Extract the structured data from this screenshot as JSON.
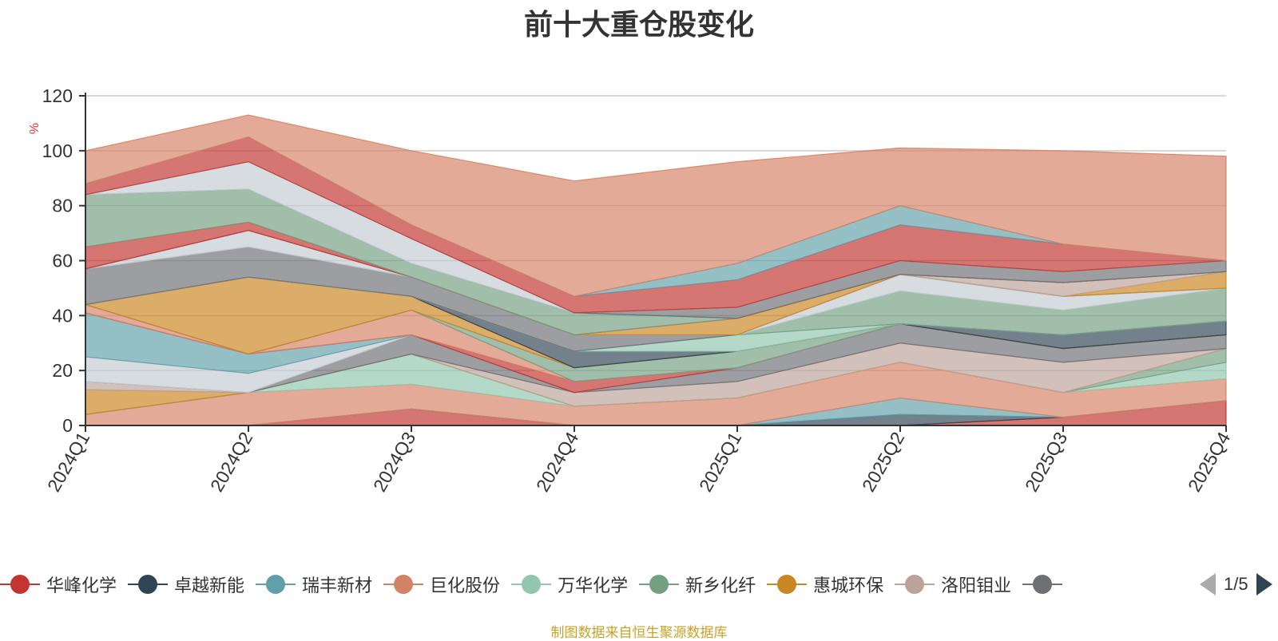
{
  "title": "前十大重仓股变化",
  "footer": "制图数据来自恒生聚源数据库",
  "pager": "1/5",
  "chart_data": {
    "type": "area",
    "stacked": true,
    "x": [
      "2024Q1",
      "2024Q2",
      "2024Q3",
      "2024Q4",
      "2025Q1",
      "2025Q2",
      "2025Q3",
      "2025Q4"
    ],
    "ylabel": "%",
    "ylim": [
      0,
      120
    ],
    "yticks": [
      0,
      20,
      40,
      60,
      80,
      100,
      120
    ],
    "grid": true,
    "legend_position": "bottom",
    "series": [
      {
        "name": "华峰化学",
        "color": "#c23531",
        "values": [
          0,
          0,
          6,
          0,
          0,
          0,
          3,
          9
        ]
      },
      {
        "name": "卓越新能",
        "color": "#2f4554",
        "values": [
          0,
          0,
          0,
          0,
          0,
          4,
          0,
          0
        ]
      },
      {
        "name": "瑞丰新材",
        "color": "#61a0a8",
        "values": [
          0,
          0,
          0,
          0,
          0,
          6,
          0,
          0
        ]
      },
      {
        "name": "巨化股份",
        "color": "#d48265",
        "values": [
          4,
          12,
          9,
          7,
          10,
          13,
          9,
          8
        ]
      },
      {
        "name": "万华化学",
        "color": "#91c7ae",
        "values": [
          0,
          0,
          11,
          0,
          0,
          0,
          0,
          6
        ]
      },
      {
        "name": "新乡化纤",
        "color": "#749f83",
        "values": [
          0,
          0,
          0,
          0,
          0,
          0,
          0,
          5
        ]
      },
      {
        "name": "惠城环保",
        "color": "#ca8622",
        "values": [
          9,
          0,
          0,
          0,
          0,
          0,
          0,
          0
        ]
      },
      {
        "name": "洛阳钼业",
        "color": "#bda29a",
        "values": [
          3,
          0,
          0,
          5,
          6,
          7,
          11,
          0
        ]
      },
      {
        "name": "",
        "color": "#6e7074",
        "values": [
          0,
          0,
          7,
          0,
          5,
          7,
          5,
          5
        ]
      },
      {
        "name": "",
        "color": "#c4ccd3",
        "values": [
          9,
          7,
          0,
          0,
          0,
          0,
          0,
          0
        ]
      },
      {
        "name": "",
        "color": "#61a0a8",
        "values": [
          16,
          7,
          0,
          0,
          0,
          0,
          0,
          0
        ]
      },
      {
        "name": "",
        "color": "#c23531",
        "values": [
          0,
          0,
          0,
          4,
          0,
          0,
          0,
          0
        ]
      },
      {
        "name": "",
        "color": "#d48265",
        "values": [
          3,
          0,
          9,
          0,
          0,
          0,
          0,
          0
        ]
      },
      {
        "name": "",
        "color": "#749f83",
        "values": [
          0,
          0,
          0,
          5,
          6,
          0,
          0,
          0
        ]
      },
      {
        "name": "",
        "color": "#ca8622",
        "values": [
          0,
          28,
          5,
          0,
          0,
          0,
          0,
          0
        ]
      },
      {
        "name": "",
        "color": "#2f4554",
        "values": [
          0,
          0,
          0,
          6,
          0,
          0,
          5,
          5
        ]
      },
      {
        "name": "",
        "color": "#91c7ae",
        "values": [
          0,
          0,
          0,
          0,
          6,
          0,
          0,
          0
        ]
      },
      {
        "name": "",
        "color": "#749f83",
        "values": [
          0,
          0,
          0,
          0,
          0,
          12,
          9,
          12
        ]
      },
      {
        "name": "",
        "color": "#c4ccd3",
        "values": [
          0,
          0,
          0,
          0,
          0,
          6,
          5,
          0
        ]
      },
      {
        "name": "",
        "color": "#6e7074",
        "values": [
          13,
          11,
          7,
          6,
          0,
          0,
          0,
          0
        ]
      },
      {
        "name": "",
        "color": "#c4ccd3",
        "values": [
          0,
          6,
          0,
          0,
          0,
          0,
          0,
          0
        ]
      },
      {
        "name": "",
        "color": "#ca8622",
        "values": [
          0,
          0,
          0,
          0,
          6,
          0,
          0,
          6
        ]
      },
      {
        "name": "",
        "color": "#bda29a",
        "values": [
          0,
          0,
          0,
          0,
          0,
          0,
          5,
          0
        ]
      },
      {
        "name": "",
        "color": "#c23531",
        "values": [
          8,
          3,
          0,
          0,
          0,
          0,
          0,
          0
        ]
      },
      {
        "name": "",
        "color": "#749f83",
        "values": [
          19,
          12,
          5,
          8,
          0,
          0,
          0,
          0
        ]
      },
      {
        "name": "",
        "color": "#6e7074",
        "values": [
          0,
          0,
          0,
          0,
          4,
          5,
          4,
          4
        ]
      },
      {
        "name": "",
        "color": "#c4ccd3",
        "values": [
          0,
          10,
          9,
          0,
          0,
          0,
          0,
          0
        ]
      },
      {
        "name": "",
        "color": "#c23531",
        "values": [
          4,
          9,
          5,
          6,
          10,
          13,
          10,
          0
        ]
      },
      {
        "name": "",
        "color": "#61a0a8",
        "values": [
          0,
          0,
          0,
          0,
          6,
          7,
          0,
          0
        ]
      },
      {
        "name": "",
        "color": "#d48265",
        "values": [
          12,
          8,
          27,
          42,
          37,
          21,
          34,
          38
        ]
      }
    ]
  }
}
